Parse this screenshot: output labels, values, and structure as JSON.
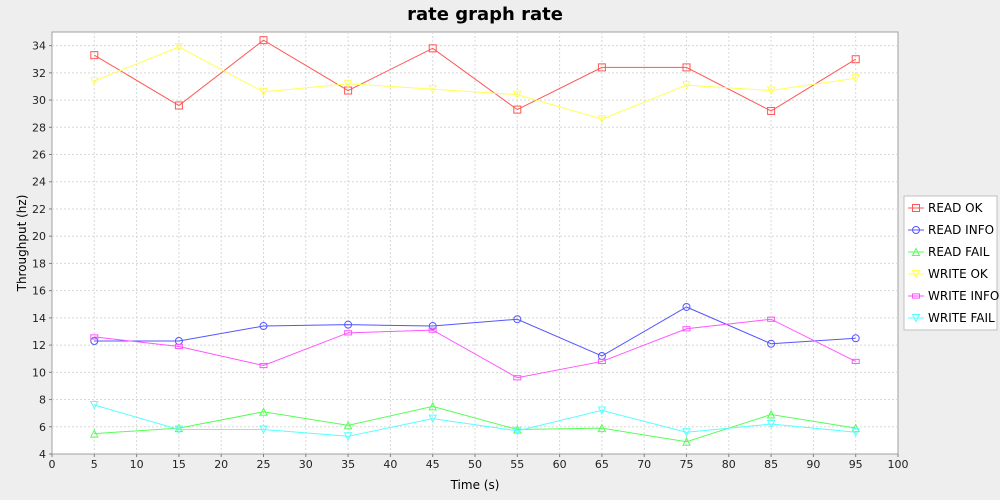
{
  "chart_data": {
    "type": "line",
    "title": "rate graph rate",
    "xlabel": "Time (s)",
    "ylabel": "Throughput (hz)",
    "xlim": [
      0,
      100
    ],
    "ylim": [
      4,
      35
    ],
    "xticks": [
      0,
      5,
      10,
      15,
      20,
      25,
      30,
      35,
      40,
      45,
      50,
      55,
      60,
      65,
      70,
      75,
      80,
      85,
      90,
      95,
      100
    ],
    "yticks": [
      4,
      6,
      8,
      10,
      12,
      14,
      16,
      18,
      20,
      22,
      24,
      26,
      28,
      30,
      32,
      34
    ],
    "grid": true,
    "legend_position": "right",
    "x": [
      5,
      15,
      25,
      35,
      45,
      55,
      65,
      75,
      85,
      95
    ],
    "series": [
      {
        "name": "READ OK",
        "color": "#ff5555",
        "marker": "square",
        "values": [
          33.3,
          29.6,
          34.4,
          30.7,
          33.8,
          29.3,
          32.4,
          32.4,
          29.2,
          33.0
        ]
      },
      {
        "name": "READ INFO",
        "color": "#5555ff",
        "marker": "circle",
        "values": [
          12.3,
          12.3,
          13.4,
          13.5,
          13.4,
          13.9,
          11.2,
          14.8,
          12.1,
          12.5
        ]
      },
      {
        "name": "READ FAIL",
        "color": "#55ff55",
        "marker": "triangle-up",
        "values": [
          5.5,
          5.9,
          7.1,
          6.1,
          7.5,
          5.8,
          5.9,
          4.9,
          6.9,
          5.9
        ]
      },
      {
        "name": "WRITE OK",
        "color": "#ffff55",
        "marker": "triangle-down",
        "values": [
          31.4,
          33.9,
          30.6,
          31.2,
          30.8,
          30.4,
          28.6,
          31.1,
          30.7,
          31.6
        ]
      },
      {
        "name": "WRITE INFO",
        "color": "#ff55ff",
        "marker": "rect",
        "values": [
          12.6,
          11.9,
          10.5,
          12.9,
          13.1,
          9.6,
          10.8,
          13.2,
          13.9,
          10.8
        ]
      },
      {
        "name": "WRITE FAIL",
        "color": "#55ffff",
        "marker": "triangle-down",
        "values": [
          7.6,
          5.8,
          5.8,
          5.3,
          6.6,
          5.7,
          7.2,
          5.6,
          6.2,
          5.6
        ]
      }
    ]
  }
}
